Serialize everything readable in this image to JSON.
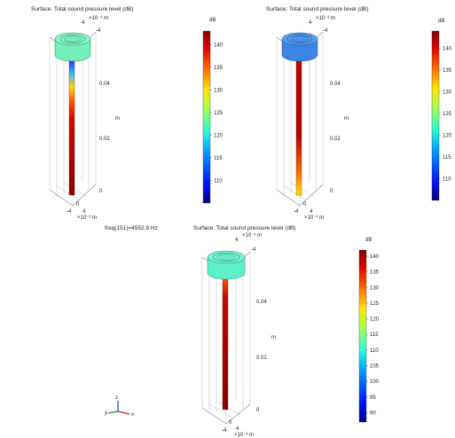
{
  "plots": [
    {
      "title": "Surface: Total sound pressure level (dB)",
      "unit_top": "dB",
      "axis_top": "×10⁻³ m",
      "axis_bottom": "×10⁻³ m",
      "axis_side": "m",
      "tick_x": "4",
      "tick_x2": "-4",
      "tick_b1": "0",
      "tick_b2": "-4",
      "tick_b3": "4",
      "tick_b4": "0",
      "z_ticks": [
        "0.04",
        "0.02",
        "0"
      ],
      "colorbar_ticks": [
        "140",
        "135",
        "130",
        "125",
        "120",
        "115",
        "110"
      ],
      "colorbar_range": [
        105,
        143
      ],
      "cap_color": "#72f0b8"
    },
    {
      "title": "Surface: Total sound pressure level (dB)",
      "unit_top": "dB",
      "axis_top": "×10⁻³ m",
      "axis_bottom": "×10⁻³ m",
      "axis_side": "m",
      "tick_x": "4",
      "tick_x2": "-4",
      "tick_b1": "0",
      "tick_b2": "-4",
      "tick_b3": "4",
      "tick_b4": "0",
      "z_ticks": [
        "0.04",
        "0.02",
        "0"
      ],
      "colorbar_ticks": [
        "140",
        "135",
        "130",
        "125",
        "120",
        "115",
        "110"
      ],
      "colorbar_range": [
        105,
        144
      ],
      "cap_color": "#3e86e6"
    },
    {
      "title": "Surface: Total sound pressure level (dB)",
      "unit_top": "dB",
      "axis_top": "×10⁻³ m",
      "axis_bottom": "×10⁻³ m",
      "axis_side": "m",
      "tick_x": "4",
      "tick_x2": "-4",
      "tick_b1": "0",
      "tick_b2": "-4",
      "tick_b3": "4",
      "tick_b4": "0",
      "z_ticks": [
        "0.04",
        "0.02",
        "0"
      ],
      "colorbar_ticks": [
        "140",
        "135",
        "130",
        "125",
        "120",
        "115",
        "110",
        "105",
        "100",
        "95",
        "90"
      ],
      "colorbar_range": [
        87,
        142
      ],
      "cap_color": "#5cf0c8"
    }
  ],
  "freq_label": "freq(151)=4552.9 Hz",
  "triad": {
    "y": "y",
    "z": "z",
    "x": "x"
  },
  "colors": {
    "jet": [
      "#00007f",
      "#0010ff",
      "#00a0ff",
      "#2cffd2",
      "#a6ff50",
      "#ffe600",
      "#ff6a00",
      "#dd0000",
      "#7f0000"
    ]
  }
}
